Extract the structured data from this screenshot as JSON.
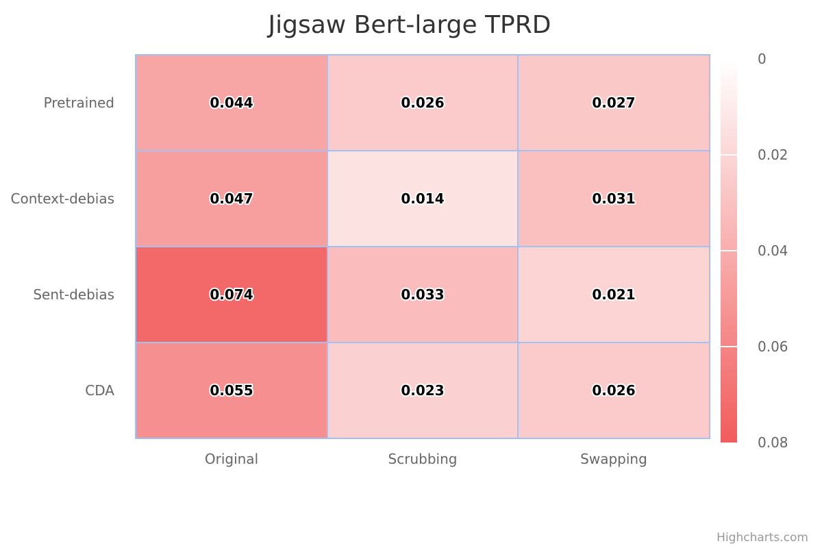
{
  "chart_data": {
    "type": "heatmap",
    "title": "Jigsaw Bert-large TPRD",
    "x_categories": [
      "Original",
      "Scrubbing",
      "Swapping"
    ],
    "y_categories": [
      "Pretrained",
      "Context-debias",
      "Sent-debias",
      "CDA"
    ],
    "values": [
      [
        0.044,
        0.026,
        0.027
      ],
      [
        0.047,
        0.014,
        0.031
      ],
      [
        0.074,
        0.033,
        0.021
      ],
      [
        0.055,
        0.023,
        0.026
      ]
    ],
    "value_labels": [
      [
        "0.044",
        "0.026",
        "0.027"
      ],
      [
        "0.047",
        "0.014",
        "0.031"
      ],
      [
        "0.074",
        "0.033",
        "0.021"
      ],
      [
        "0.055",
        "0.023",
        "0.026"
      ]
    ],
    "color_axis": {
      "min": 0,
      "max": 0.08,
      "min_color": "#ffffff",
      "max_color": "#f25c5c",
      "tick_labels": [
        "0",
        "0.02",
        "0.04",
        "0.06",
        "0.08"
      ],
      "placement": "right"
    },
    "cell_border_color": "#a3c1f2",
    "credits": "Highcharts.com"
  }
}
